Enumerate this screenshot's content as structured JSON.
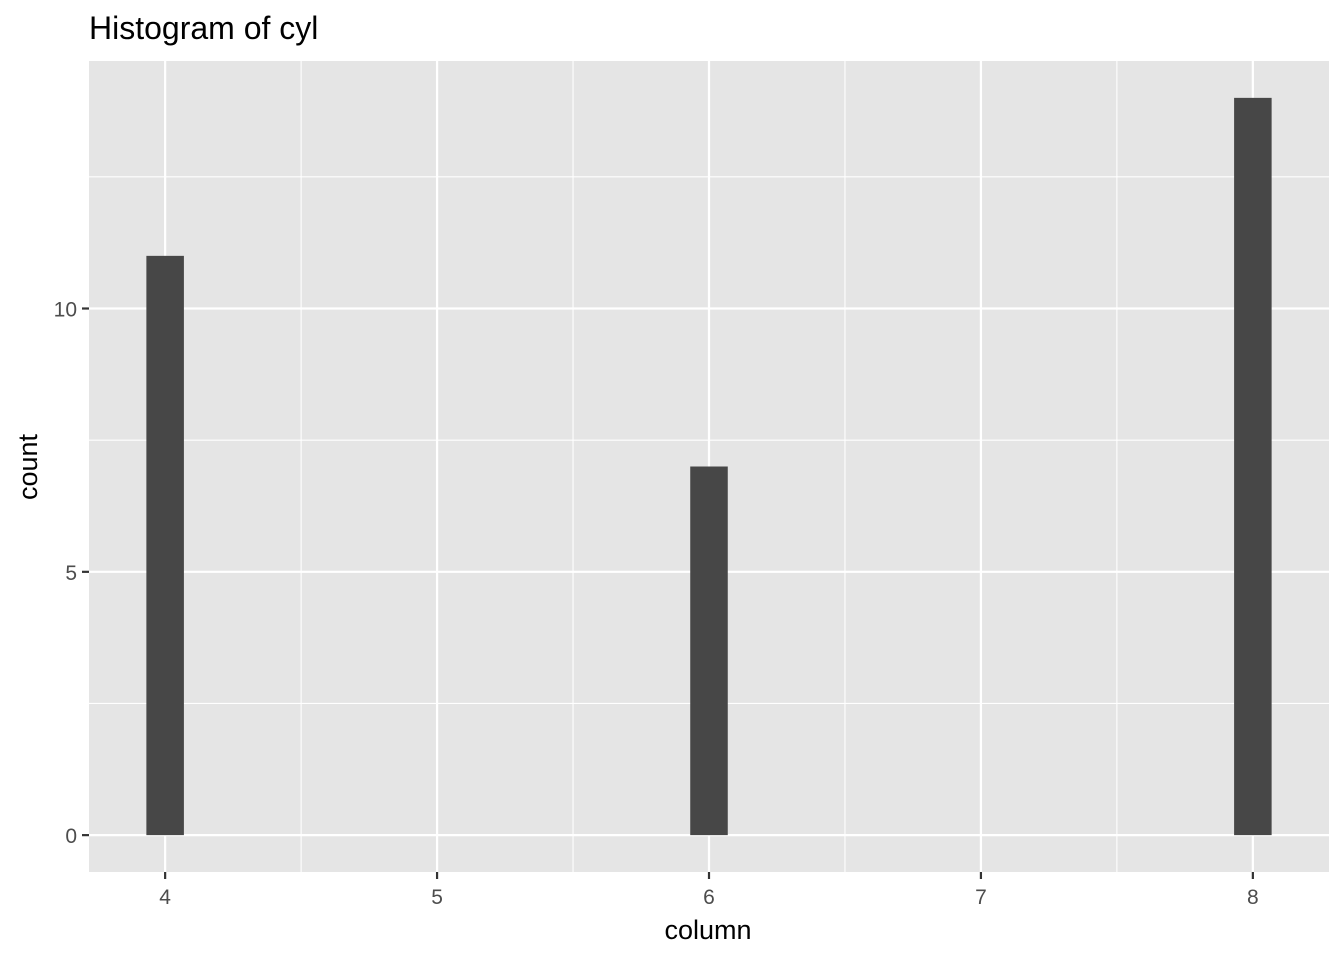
{
  "chart_data": {
    "type": "bar",
    "title": "Histogram of cyl",
    "xlabel": "column",
    "ylabel": "count",
    "x": [
      4,
      6,
      8
    ],
    "values": [
      11,
      7,
      14
    ],
    "bar_width": 0.138,
    "xlim": [
      3.72,
      8.28
    ],
    "ylim": [
      -0.7,
      14.7
    ],
    "x_ticks": [
      4,
      5,
      6,
      7,
      8
    ],
    "x_tick_labels": [
      "4",
      "5",
      "6",
      "7",
      "8"
    ],
    "x_minor_breaks": [
      4.5,
      5.5,
      6.5,
      7.5
    ],
    "y_ticks": [
      0,
      5,
      10
    ],
    "y_tick_labels": [
      "0",
      "5",
      "10"
    ],
    "y_minor_breaks": [
      2.5,
      7.5,
      12.5
    ],
    "grid": true,
    "colors": {
      "bar": "#474747",
      "panel": "#e5e5e5",
      "grid": "#ffffff",
      "tick_text": "#4d4d4d",
      "axis_tick": "#333333"
    }
  }
}
